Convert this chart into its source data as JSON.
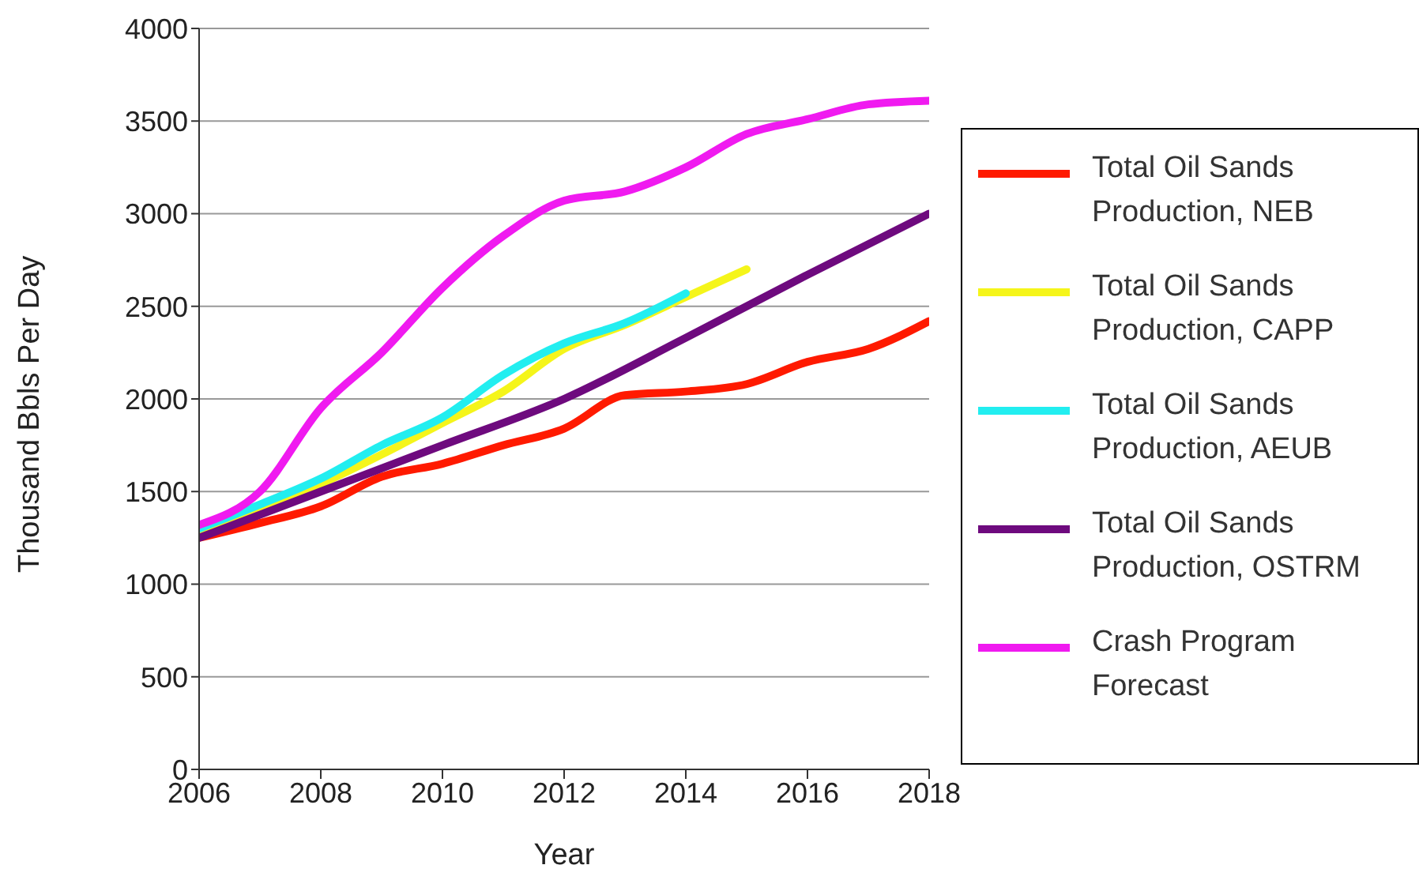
{
  "chart_data": {
    "type": "line",
    "xlabel": "Year",
    "ylabel": "Thousand Bbls Per Day",
    "xlim": [
      2006,
      2018
    ],
    "xticks": [
      2006,
      2008,
      2010,
      2012,
      2014,
      2016,
      2018
    ],
    "ylim": [
      0,
      4000
    ],
    "yticks": [
      0,
      500,
      1000,
      1500,
      2000,
      2500,
      3000,
      3500,
      4000
    ],
    "grid": "y",
    "legend": "right",
    "marker": "none",
    "line_style": "solid",
    "series": [
      {
        "name": "Total Oil Sands Production, NEB",
        "color": "#ff1a00",
        "x": [
          2006,
          2007,
          2008,
          2009,
          2010,
          2011,
          2012,
          2013,
          2014,
          2015,
          2016,
          2017,
          2018
        ],
        "values": [
          1250,
          1330,
          1420,
          1580,
          1650,
          1750,
          1840,
          2020,
          2040,
          2080,
          2200,
          2270,
          2420
        ]
      },
      {
        "name": "Total Oil Sands Production, CAPP",
        "color": "#f5f51a",
        "x": [
          2006,
          2007,
          2008,
          2009,
          2010,
          2011,
          2012,
          2013,
          2014,
          2015
        ],
        "values": [
          1280,
          1400,
          1540,
          1700,
          1870,
          2040,
          2270,
          2400,
          2550,
          2700
        ]
      },
      {
        "name": "Total Oil Sands Production, AEUB",
        "color": "#22eef0",
        "x": [
          2006,
          2007,
          2008,
          2009,
          2010,
          2011,
          2012,
          2013,
          2014
        ],
        "values": [
          1300,
          1430,
          1570,
          1750,
          1900,
          2130,
          2300,
          2410,
          2570
        ]
      },
      {
        "name": "Total Oil Sands Production, OSTRM",
        "color": "#6e0a7e",
        "x": [
          2006,
          2008,
          2010,
          2012,
          2014,
          2016,
          2018
        ],
        "values": [
          1250,
          1500,
          1750,
          2000,
          2330,
          2670,
          3000
        ]
      },
      {
        "name": "Crash Program Forecast",
        "color": "#f01af0",
        "x": [
          2006,
          2007,
          2008,
          2009,
          2010,
          2011,
          2012,
          2013,
          2014,
          2015,
          2016,
          2017,
          2018
        ],
        "values": [
          1320,
          1500,
          1950,
          2250,
          2600,
          2880,
          3070,
          3120,
          3250,
          3430,
          3510,
          3590,
          3610
        ]
      }
    ]
  }
}
